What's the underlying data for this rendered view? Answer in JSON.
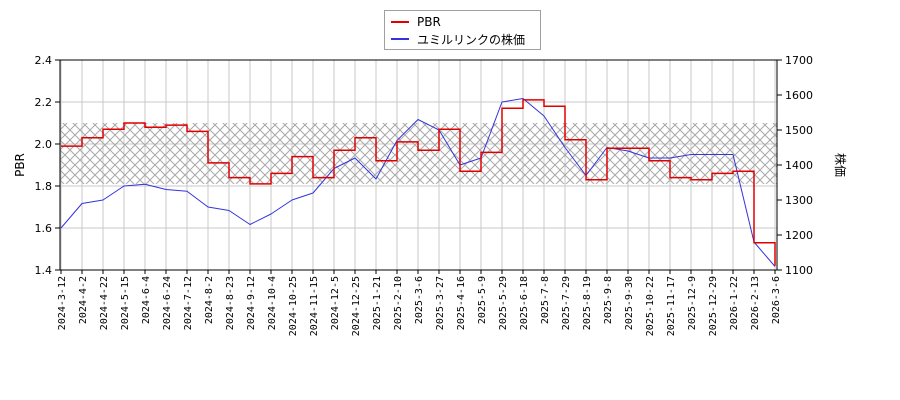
{
  "legend": {
    "items": [
      {
        "label": "PBR",
        "color": "#e00000"
      },
      {
        "label": "ユミルリンクの株価",
        "color": "#3333dd"
      }
    ]
  },
  "axes": {
    "left_label": "PBR",
    "right_label": "株価",
    "left_ticks": [
      "1.4",
      "1.6",
      "1.8",
      "2.0",
      "2.2",
      "2.4"
    ],
    "right_ticks": [
      "1100",
      "1200",
      "1300",
      "1400",
      "1500",
      "1600",
      "1700"
    ]
  },
  "chart_data": {
    "type": "line",
    "title": "",
    "xlabel": "",
    "ylabel": "PBR",
    "y2label": "株価",
    "ylim": [
      1.4,
      2.4
    ],
    "y2lim": [
      1100,
      1700
    ],
    "grid": true,
    "legend_position": "top-center",
    "shaded_band": {
      "axis": "y",
      "from": 1.81,
      "to": 2.1,
      "style": "crosshatch"
    },
    "categories": [
      "2024-3-12",
      "2024-4-2",
      "2024-4-22",
      "2024-5-15",
      "2024-6-4",
      "2024-6-24",
      "2024-7-12",
      "2024-8-2",
      "2024-8-23",
      "2024-9-12",
      "2024-10-4",
      "2024-10-25",
      "2024-11-15",
      "2024-12-5",
      "2024-12-25",
      "2025-1-21",
      "2025-2-10",
      "2025-3-6",
      "2025-3-27",
      "2025-4-16",
      "2025-5-9",
      "2025-5-29",
      "2025-6-18",
      "2025-7-8",
      "2025-7-29",
      "2025-8-19",
      "2025-9-8",
      "2025-9-30",
      "2025-10-22",
      "2025-11-17",
      "2025-12-9",
      "2025-12-29",
      "2026-1-22",
      "2026-2-13",
      "2026-3-6"
    ],
    "series": [
      {
        "name": "PBR",
        "axis": "left",
        "color": "#e00000",
        "values": [
          1.99,
          2.03,
          2.07,
          2.1,
          2.08,
          2.09,
          2.06,
          1.91,
          1.84,
          1.81,
          1.86,
          1.94,
          1.84,
          1.97,
          2.03,
          1.92,
          2.01,
          1.97,
          2.07,
          1.87,
          1.96,
          2.17,
          2.21,
          2.18,
          2.02,
          1.83,
          1.98,
          1.98,
          1.92,
          1.84,
          1.83,
          1.86,
          1.87,
          1.53,
          1.42
        ]
      },
      {
        "name": "ユミルリンクの株価",
        "axis": "right",
        "color": "#3333dd",
        "values": [
          1220,
          1290,
          1300,
          1340,
          1345,
          1330,
          1325,
          1280,
          1270,
          1230,
          1260,
          1300,
          1320,
          1390,
          1420,
          1360,
          1470,
          1530,
          1500,
          1400,
          1420,
          1580,
          1590,
          1540,
          1450,
          1370,
          1450,
          1440,
          1420,
          1420,
          1430,
          1430,
          1430,
          1180,
          1110
        ]
      }
    ]
  }
}
